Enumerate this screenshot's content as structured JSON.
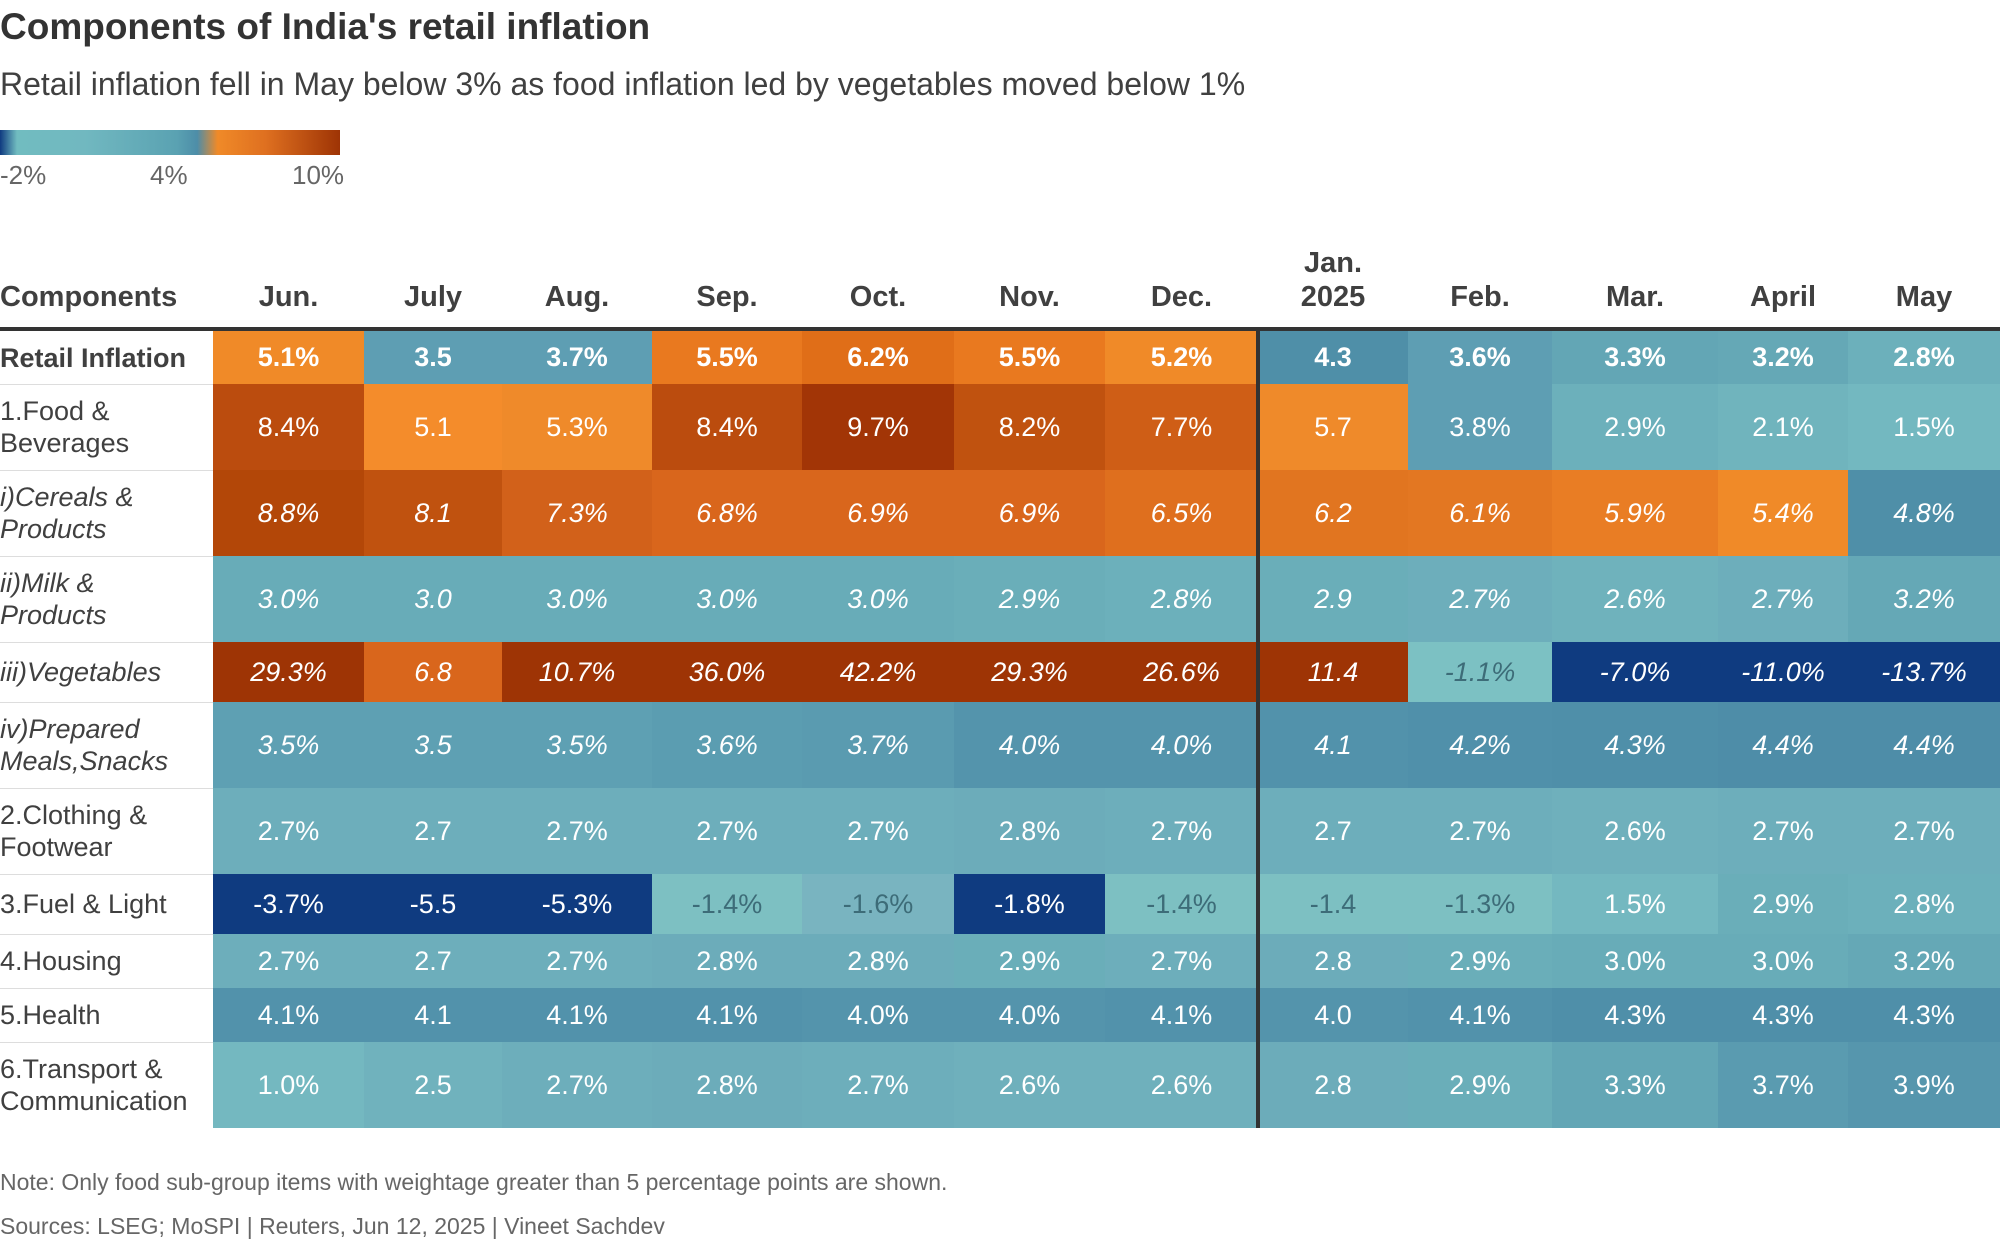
{
  "title": "Components of India's retail inflation",
  "subtitle": "Retail inflation fell in May below 3% as food inflation led by vegetables moved below 1%",
  "legend": {
    "labels": [
      "-2%",
      "4%",
      "10%"
    ]
  },
  "note": "Note: Only food sub-group items with weightage greater than 5 percentage points are shown.",
  "source": "Sources: LSEG; MoSPI | Reuters, Jun 12, 2025 | Vineet Sachdev",
  "chart_data": {
    "type": "table",
    "row_header": "Components",
    "columns": [
      "Jun.",
      "July",
      "Aug.",
      "Sep.",
      "Oct.",
      "Nov.",
      "Dec.",
      "Jan.\n2025",
      "Feb.",
      "Mar.",
      "April",
      "May"
    ],
    "color_scale": {
      "min": -2,
      "mid": 4,
      "max": 10,
      "colors": [
        "#0f3b80",
        "#5aa2b2",
        "#9e3405"
      ]
    },
    "rows": [
      {
        "label": "Retail Inflation",
        "style": "bold",
        "values": [
          5.1,
          3.5,
          3.7,
          5.5,
          6.2,
          5.5,
          5.2,
          4.3,
          3.6,
          3.3,
          3.2,
          2.8
        ],
        "display": [
          "5.1%",
          "3.5",
          "3.7%",
          "5.5%",
          "6.2%",
          "5.5%",
          "5.2%",
          "4.3",
          "3.6%",
          "3.3%",
          "3.2%",
          "2.8%"
        ],
        "colors": [
          "#f08a28",
          "#5e9eb3",
          "#5e9eb3",
          "#e9791f",
          "#e06e18",
          "#e9791f",
          "#f08a28",
          "#4f8fa8",
          "#5e9eb3",
          "#63a6b5",
          "#65a8b6",
          "#6cb0bb"
        ]
      },
      {
        "label": "1.Food &\nBeverages",
        "style": "normal",
        "values": [
          8.4,
          5.1,
          5.3,
          8.4,
          9.7,
          8.2,
          7.7,
          5.7,
          3.8,
          2.9,
          2.1,
          1.5
        ],
        "display": [
          "8.4%",
          "5.1",
          "5.3%",
          "8.4%",
          "9.7%",
          "8.2%",
          "7.7%",
          "5.7",
          "3.8%",
          "2.9%",
          "2.1%",
          "1.5%"
        ],
        "colors": [
          "#bb4c0e",
          "#f48c2b",
          "#ef8a2a",
          "#bb4c0e",
          "#a23506",
          "#c0520f",
          "#cf5e16",
          "#ef8a2a",
          "#5e9eb3",
          "#6cb0bb",
          "#70b4bd",
          "#73b8c0"
        ]
      },
      {
        "label": "i)Cereals &\nProducts",
        "style": "italic",
        "values": [
          8.8,
          8.1,
          7.3,
          6.8,
          6.9,
          6.9,
          6.5,
          6.2,
          6.1,
          5.9,
          5.4,
          4.8
        ],
        "display": [
          "8.8%",
          "8.1",
          "7.3%",
          "6.8%",
          "6.9%",
          "6.9%",
          "6.5%",
          "6.2",
          "6.1%",
          "5.9%",
          "5.4%",
          "4.8%"
        ],
        "colors": [
          "#b34708",
          "#c0520f",
          "#d2611a",
          "#d9661c",
          "#d9661c",
          "#d9661c",
          "#df6f1e",
          "#e17520",
          "#e37722",
          "#e97d24",
          "#f08a28",
          "#4f8fa8"
        ]
      },
      {
        "label": "ii)Milk &\nProducts",
        "style": "italic",
        "values": [
          3.0,
          3.0,
          3.0,
          3.0,
          3.0,
          2.9,
          2.8,
          2.9,
          2.7,
          2.6,
          2.7,
          3.2
        ],
        "display": [
          "3.0%",
          "3.0",
          "3.0%",
          "3.0%",
          "3.0%",
          "2.9%",
          "2.8%",
          "2.9",
          "2.7%",
          "2.6%",
          "2.7%",
          "3.2%"
        ],
        "colors": [
          "#68acb8",
          "#68acb8",
          "#68acb8",
          "#68acb8",
          "#68acb8",
          "#6aaeb9",
          "#6cb0bb",
          "#6aaeb9",
          "#6daebb",
          "#6fb2bc",
          "#6daebb",
          "#65a8b6"
        ]
      },
      {
        "label": "iii)Vegetables",
        "style": "italic",
        "values": [
          29.3,
          6.8,
          10.7,
          36.0,
          42.2,
          29.3,
          26.6,
          11.4,
          -1.1,
          -7.0,
          -11.0,
          -13.7
        ],
        "display": [
          "29.3%",
          "6.8",
          "10.7%",
          "36.0%",
          "42.2%",
          "29.3%",
          "26.6%",
          "11.4",
          "-1.1%",
          "-7.0%",
          "-11.0%",
          "-13.7%"
        ],
        "colors": [
          "#9e3405",
          "#d9661c",
          "#9e3405",
          "#9e3405",
          "#9e3405",
          "#9e3405",
          "#9e3405",
          "#9e3405",
          "#7cc1c3",
          "#0f3b80",
          "#0f3b80",
          "#0f3b80"
        ]
      },
      {
        "label": "iv)Prepared\nMeals,Snacks",
        "style": "italic",
        "values": [
          3.5,
          3.5,
          3.5,
          3.6,
          3.7,
          4.0,
          4.0,
          4.1,
          4.2,
          4.3,
          4.4,
          4.4
        ],
        "display": [
          "3.5%",
          "3.5",
          "3.5%",
          "3.6%",
          "3.7%",
          "4.0%",
          "4.0%",
          "4.1",
          "4.2%",
          "4.3%",
          "4.4%",
          "4.4%"
        ],
        "colors": [
          "#5ea0b3",
          "#5ea0b3",
          "#5ea0b3",
          "#5b9db1",
          "#5a9bb0",
          "#5494ac",
          "#5494ac",
          "#5292ab",
          "#5090aa",
          "#4f8fa9",
          "#4e8da8",
          "#4e8da8"
        ]
      },
      {
        "label": "2.Clothing &\nFootwear",
        "style": "normal",
        "values": [
          2.7,
          2.7,
          2.7,
          2.7,
          2.7,
          2.8,
          2.7,
          2.7,
          2.7,
          2.6,
          2.7,
          2.7
        ],
        "display": [
          "2.7%",
          "2.7",
          "2.7%",
          "2.7%",
          "2.7%",
          "2.8%",
          "2.7%",
          "2.7",
          "2.7%",
          "2.6%",
          "2.7%",
          "2.7%"
        ],
        "colors": [
          "#6daebb",
          "#6daebb",
          "#6daebb",
          "#6daebb",
          "#6daebb",
          "#6cacba",
          "#6daebb",
          "#6daebb",
          "#6daebb",
          "#6fb0bc",
          "#6daebb",
          "#6daebb"
        ]
      },
      {
        "label": "3.Fuel & Light",
        "style": "normal",
        "values": [
          -3.7,
          -5.5,
          -5.3,
          -1.4,
          -1.6,
          -1.8,
          -1.4,
          -1.4,
          -1.3,
          1.5,
          2.9,
          2.8
        ],
        "display": [
          "-3.7%",
          "-5.5",
          "-5.3%",
          "-1.4%",
          "-1.6%",
          "-1.8%",
          "-1.4%",
          "-1.4",
          "-1.3%",
          "1.5%",
          "2.9%",
          "2.8%"
        ],
        "colors": [
          "#0f3b80",
          "#0f3b80",
          "#0f3b80",
          "#7dc0c2",
          "#79b4c0",
          "#0f3b80",
          "#7dc0c2",
          "#7dc0c2",
          "#7dc0c2",
          "#74b8c0",
          "#6aaeb9",
          "#6cb0bb"
        ]
      },
      {
        "label": "4.Housing",
        "style": "normal",
        "values": [
          2.7,
          2.7,
          2.7,
          2.8,
          2.8,
          2.9,
          2.7,
          2.8,
          2.9,
          3.0,
          3.0,
          3.2
        ],
        "display": [
          "2.7%",
          "2.7",
          "2.7%",
          "2.8%",
          "2.8%",
          "2.9%",
          "2.7%",
          "2.8",
          "2.9%",
          "3.0%",
          "3.0%",
          "3.2%"
        ],
        "colors": [
          "#6daebb",
          "#6daebb",
          "#6daebb",
          "#6cacba",
          "#6cacba",
          "#6aaeb9",
          "#6daebb",
          "#6cacba",
          "#6aaeb9",
          "#68acb8",
          "#68acb8",
          "#65a8b6"
        ]
      },
      {
        "label": "5.Health",
        "style": "normal",
        "values": [
          4.1,
          4.1,
          4.1,
          4.1,
          4.0,
          4.0,
          4.1,
          4.0,
          4.1,
          4.3,
          4.3,
          4.3
        ],
        "display": [
          "4.1%",
          "4.1",
          "4.1%",
          "4.1%",
          "4.0%",
          "4.0%",
          "4.1%",
          "4.0",
          "4.1%",
          "4.3%",
          "4.3%",
          "4.3%"
        ],
        "colors": [
          "#5292ab",
          "#5292ab",
          "#5292ab",
          "#5292ab",
          "#5494ac",
          "#5494ac",
          "#5292ab",
          "#5494ac",
          "#5292ab",
          "#4f8fa9",
          "#4f8fa9",
          "#4f8fa9"
        ]
      },
      {
        "label": "6.Transport &\nCommunication",
        "style": "normal",
        "values": [
          1.0,
          2.5,
          2.7,
          2.8,
          2.7,
          2.6,
          2.6,
          2.8,
          2.9,
          3.3,
          3.7,
          3.9
        ],
        "display": [
          "1.0%",
          "2.5",
          "2.7%",
          "2.8%",
          "2.7%",
          "2.6%",
          "2.6%",
          "2.8",
          "2.9%",
          "3.3%",
          "3.7%",
          "3.9%"
        ],
        "colors": [
          "#74b8c0",
          "#70b2bd",
          "#6daebb",
          "#6cacba",
          "#6daebb",
          "#6fb0bc",
          "#6fb0bc",
          "#6cacba",
          "#6aaeb9",
          "#63a6b5",
          "#5a9bb0",
          "#5696ad"
        ]
      }
    ]
  }
}
